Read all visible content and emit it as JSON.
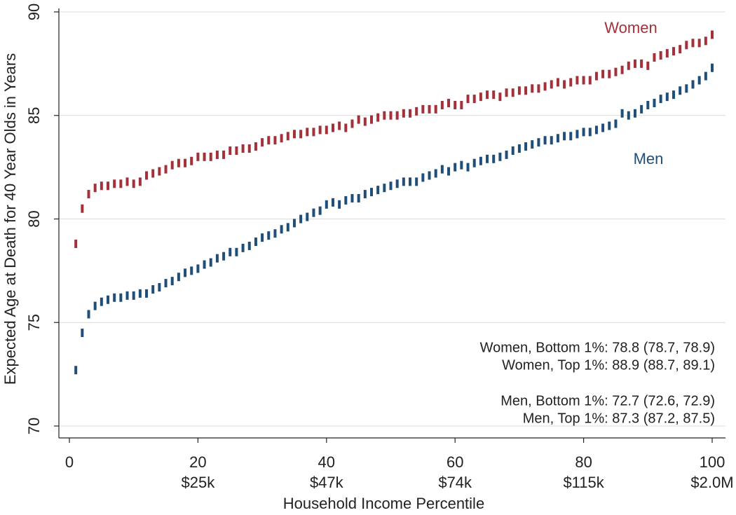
{
  "chart_data": {
    "type": "scatter",
    "x_label": "Household Income Percentile",
    "y_label": "Expected Age at Death for 40 Year Olds in Years",
    "xlim": [
      0,
      100
    ],
    "xticks": [
      0,
      20,
      40,
      60,
      80,
      100
    ],
    "xtick_income_labels": [
      null,
      "$25k",
      "$47k",
      "$74k",
      "$115k",
      "$2.0M"
    ],
    "ylim": [
      70,
      90
    ],
    "yticks": [
      70,
      75,
      80,
      85,
      90
    ],
    "grid": true,
    "x": [
      1,
      2,
      3,
      4,
      5,
      6,
      7,
      8,
      9,
      10,
      11,
      12,
      13,
      14,
      15,
      16,
      17,
      18,
      19,
      20,
      21,
      22,
      23,
      24,
      25,
      26,
      27,
      28,
      29,
      30,
      31,
      32,
      33,
      34,
      35,
      36,
      37,
      38,
      39,
      40,
      41,
      42,
      43,
      44,
      45,
      46,
      47,
      48,
      49,
      50,
      51,
      52,
      53,
      54,
      55,
      56,
      57,
      58,
      59,
      60,
      61,
      62,
      63,
      64,
      65,
      66,
      67,
      68,
      69,
      70,
      71,
      72,
      73,
      74,
      75,
      76,
      77,
      78,
      79,
      80,
      81,
      82,
      83,
      84,
      85,
      86,
      87,
      88,
      89,
      90,
      91,
      92,
      93,
      94,
      95,
      96,
      97,
      98,
      99,
      100
    ],
    "series": [
      {
        "name": "Women",
        "color": "#a3313a",
        "values": [
          78.8,
          80.5,
          81.2,
          81.5,
          81.6,
          81.6,
          81.7,
          81.7,
          81.8,
          81.7,
          81.8,
          82.1,
          82.2,
          82.3,
          82.4,
          82.6,
          82.7,
          82.7,
          82.8,
          83.0,
          83.0,
          83.0,
          83.1,
          83.1,
          83.3,
          83.3,
          83.4,
          83.4,
          83.5,
          83.7,
          83.8,
          83.8,
          83.9,
          84.0,
          84.1,
          84.1,
          84.2,
          84.2,
          84.3,
          84.3,
          84.4,
          84.5,
          84.4,
          84.6,
          84.8,
          84.7,
          84.8,
          84.9,
          85.0,
          85.0,
          85.0,
          85.1,
          85.1,
          85.2,
          85.3,
          85.3,
          85.3,
          85.5,
          85.6,
          85.5,
          85.5,
          85.8,
          85.8,
          85.9,
          86.0,
          86.0,
          85.9,
          86.1,
          86.1,
          86.2,
          86.2,
          86.3,
          86.3,
          86.4,
          86.5,
          86.6,
          86.5,
          86.6,
          86.7,
          86.7,
          86.7,
          86.9,
          87.0,
          87.0,
          87.1,
          87.2,
          87.4,
          87.5,
          87.5,
          87.4,
          87.8,
          87.9,
          88.0,
          88.1,
          88.2,
          88.4,
          88.5,
          88.5,
          88.6,
          88.9
        ]
      },
      {
        "name": "Men",
        "color": "#1f4e79",
        "values": [
          72.7,
          74.5,
          75.4,
          75.8,
          76.0,
          76.1,
          76.2,
          76.2,
          76.3,
          76.3,
          76.4,
          76.4,
          76.6,
          76.7,
          76.9,
          77.0,
          77.2,
          77.4,
          77.5,
          77.6,
          77.8,
          77.9,
          78.1,
          78.2,
          78.4,
          78.4,
          78.6,
          78.7,
          78.9,
          79.1,
          79.2,
          79.3,
          79.5,
          79.6,
          79.8,
          80.0,
          80.1,
          80.3,
          80.4,
          80.7,
          80.8,
          80.7,
          80.9,
          81.0,
          81.0,
          81.2,
          81.3,
          81.4,
          81.5,
          81.6,
          81.7,
          81.8,
          81.8,
          81.8,
          82.0,
          82.1,
          82.2,
          82.4,
          82.3,
          82.5,
          82.6,
          82.5,
          82.7,
          82.8,
          82.9,
          82.9,
          83.0,
          83.1,
          83.3,
          83.4,
          83.5,
          83.6,
          83.7,
          83.8,
          83.8,
          83.9,
          84.0,
          84.0,
          84.1,
          84.2,
          84.2,
          84.3,
          84.4,
          84.5,
          84.6,
          85.1,
          85.0,
          85.1,
          85.3,
          85.5,
          85.6,
          85.8,
          85.9,
          86.0,
          86.2,
          86.3,
          86.5,
          86.7,
          86.9,
          87.3
        ]
      }
    ],
    "annotations": [
      "Women, Bottom 1%: 78.8 (78.7, 78.9)",
      "Women, Top 1%: 88.9 (88.7, 89.1)",
      "Men, Bottom 1%: 72.7 (72.6, 72.9)",
      "Men, Top 1%: 87.3 (87.2, 87.5)"
    ]
  }
}
